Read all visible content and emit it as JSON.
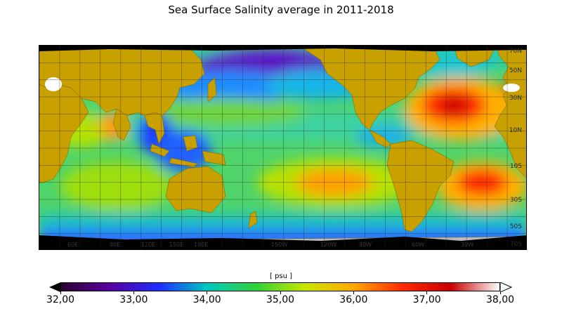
{
  "title": "Sea Surface Salinity average in 2011-2018",
  "map": {
    "lat_labels": [
      "70N",
      "50N",
      "30N",
      "10N",
      "10S",
      "30S",
      "50S",
      "70S"
    ],
    "lat_values": [
      70,
      50,
      30,
      10,
      -10,
      -30,
      -50,
      -70
    ],
    "lon_labels": [
      "60E",
      "90E",
      "120E",
      "150E",
      "180E",
      "150W",
      "120W",
      "90W",
      "60W",
      "30W"
    ],
    "colors": {
      "land": "#c8a000",
      "ice": "#000000",
      "grid": "#2b2b2b"
    }
  },
  "colorbar": {
    "unit": "[ psu ]",
    "min": 32,
    "max": 38,
    "ticks": [
      "32,00",
      "33,00",
      "34,00",
      "35,00",
      "36,00",
      "37,00",
      "38,00"
    ],
    "tick_values": [
      32,
      33,
      34,
      35,
      36,
      37,
      38
    ],
    "colormap": [
      "#2a0030",
      "#5a00a0",
      "#1e2cff",
      "#00c8c0",
      "#2fd23a",
      "#c8e600",
      "#ffa800",
      "#ff2a00",
      "#c80000",
      "#ffffff"
    ]
  }
}
